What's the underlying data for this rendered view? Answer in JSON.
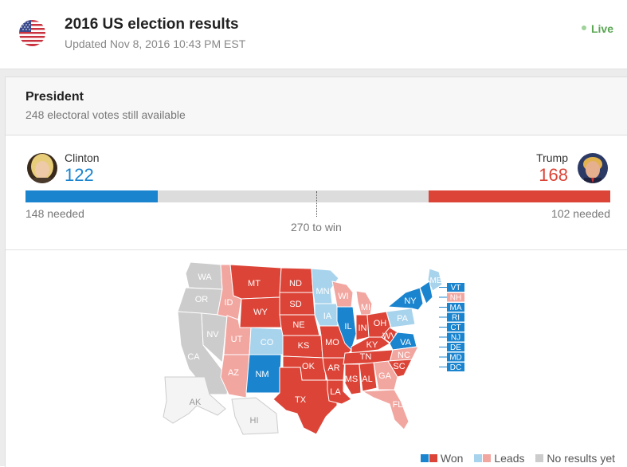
{
  "header": {
    "title": "2016 US election results",
    "updated": "Updated Nov 8, 2016 10:43 PM EST",
    "live": "Live"
  },
  "race": {
    "title": "President",
    "subtitle": "248 electoral votes still available",
    "to_win": "270 to win",
    "candidates": [
      {
        "name": "Clinton",
        "votes": "122",
        "needed": "148 needed",
        "color": "#1a84cf"
      },
      {
        "name": "Trump",
        "votes": "168",
        "needed": "102 needed",
        "color": "#dc4437"
      }
    ],
    "bar": {
      "clinton_fraction": 0.226,
      "trump_fraction": 0.311
    }
  },
  "colors": {
    "dem_won": "#1a84cf",
    "rep_won": "#dc4437",
    "dem_leads": "#a8d3ec",
    "rep_leads": "#f2a6a0",
    "no_results": "#cccccc"
  },
  "map": {
    "states": [
      "WA",
      "OR",
      "CA",
      "NV",
      "ID",
      "MT",
      "WY",
      "UT",
      "AZ",
      "CO",
      "NM",
      "ND",
      "SD",
      "NE",
      "KS",
      "OK",
      "TX",
      "MN",
      "IA",
      "MO",
      "AR",
      "LA",
      "WI",
      "IL",
      "MI",
      "IN",
      "KY",
      "TN",
      "MS",
      "AL",
      "GA",
      "FL",
      "OH",
      "WV",
      "VA",
      "NC",
      "SC",
      "PA",
      "NY",
      "ME",
      "AK",
      "HI"
    ],
    "small_states": [
      "VT",
      "NH",
      "MA",
      "RI",
      "CT",
      "NJ",
      "DE",
      "MD",
      "DC"
    ]
  },
  "legend": {
    "won": "Won",
    "leads": "Leads",
    "no_results": "No results yet"
  }
}
